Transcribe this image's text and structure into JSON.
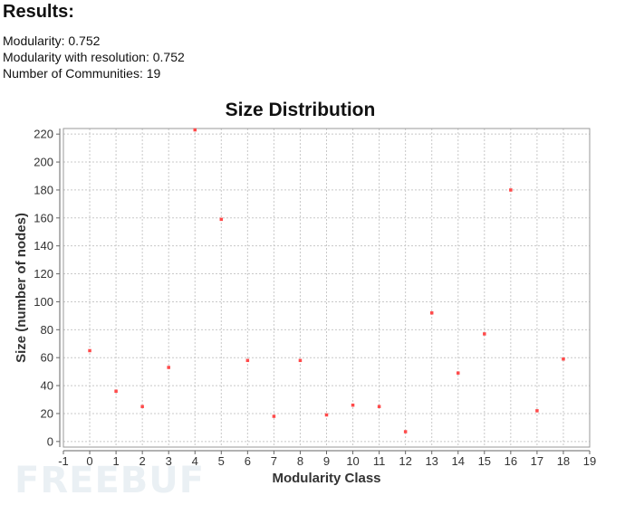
{
  "results": {
    "heading": "Results:",
    "modularity": "Modularity: 0.752",
    "modularity_resolution": "Modularity with resolution: 0.752",
    "communities": "Number of Communities: 19"
  },
  "watermark": "FREEBUF",
  "chart_data": {
    "type": "scatter",
    "title": "Size Distribution",
    "xlabel": "Modularity Class",
    "ylabel": "Size (number of nodes)",
    "xlim": [
      -1,
      19
    ],
    "ylim": [
      -4,
      224
    ],
    "xticks": [
      -1,
      0,
      1,
      2,
      3,
      4,
      5,
      6,
      7,
      8,
      9,
      10,
      11,
      12,
      13,
      14,
      15,
      16,
      17,
      18,
      19
    ],
    "yticks": [
      0,
      20,
      40,
      60,
      80,
      100,
      120,
      140,
      160,
      180,
      200,
      220
    ],
    "grid": true,
    "point_color": "#ff4a4a",
    "points": [
      {
        "x": 0,
        "y": 65
      },
      {
        "x": 1,
        "y": 36
      },
      {
        "x": 2,
        "y": 25
      },
      {
        "x": 3,
        "y": 53
      },
      {
        "x": 4,
        "y": 223
      },
      {
        "x": 5,
        "y": 159
      },
      {
        "x": 6,
        "y": 58
      },
      {
        "x": 7,
        "y": 18
      },
      {
        "x": 8,
        "y": 58
      },
      {
        "x": 9,
        "y": 19
      },
      {
        "x": 10,
        "y": 26
      },
      {
        "x": 11,
        "y": 25
      },
      {
        "x": 12,
        "y": 7
      },
      {
        "x": 13,
        "y": 92
      },
      {
        "x": 14,
        "y": 49
      },
      {
        "x": 15,
        "y": 77
      },
      {
        "x": 16,
        "y": 180
      },
      {
        "x": 17,
        "y": 22
      },
      {
        "x": 18,
        "y": 59
      }
    ]
  }
}
